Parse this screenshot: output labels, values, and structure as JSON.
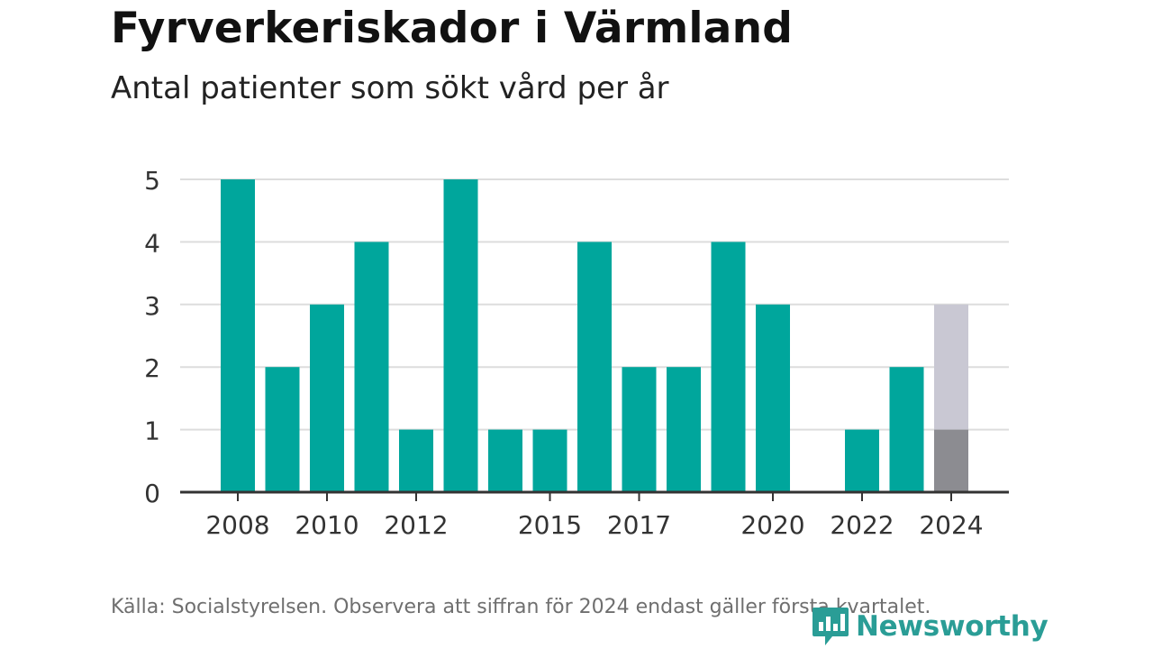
{
  "title": "Fyrverkeriskador i Värmland",
  "subtitle": "Antal patienter som sökt vård per år",
  "footer": "Källa: Socialstyrelsen. Observera att siffran för 2024 endast gäller första kvartalet.",
  "brand": "Newsworthy",
  "colors": {
    "bar": "#00a69c",
    "bar_partial_light": "#c9c8d3",
    "bar_partial_dark": "#8c8c91",
    "grid": "#dddddd",
    "axis": "#333333",
    "brand": "#2a9d96"
  },
  "chart_data": {
    "type": "bar",
    "categories": [
      "2008",
      "2009",
      "2010",
      "2011",
      "2012",
      "2013",
      "2014",
      "2015",
      "2016",
      "2017",
      "2018",
      "2019",
      "2020",
      "2021",
      "2022",
      "2023",
      "2024"
    ],
    "values": [
      5,
      2,
      3,
      4,
      1,
      5,
      1,
      1,
      4,
      2,
      2,
      4,
      3,
      0,
      1,
      2,
      1
    ],
    "partial_total_2024": 3,
    "tick_labels": [
      "2008",
      "2010",
      "2012",
      "2015",
      "2017",
      "2020",
      "2022",
      "2024"
    ],
    "yticks": [
      0,
      1,
      2,
      3,
      4,
      5
    ],
    "ylim": [
      0,
      5
    ],
    "grid": true
  }
}
